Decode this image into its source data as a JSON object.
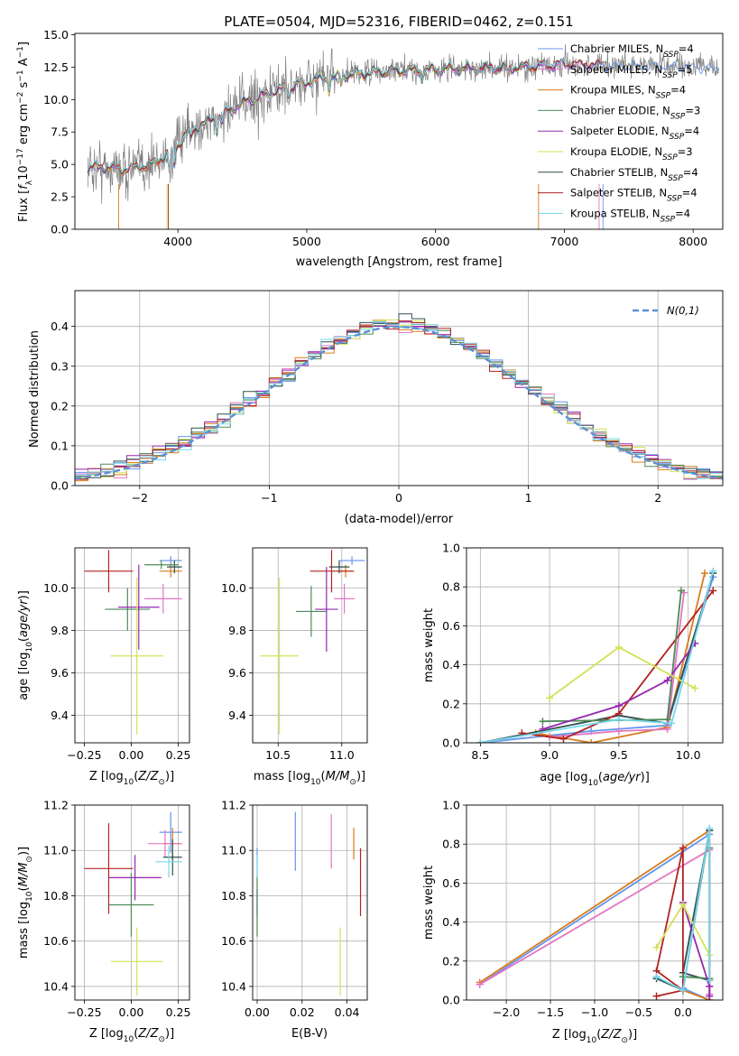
{
  "chart_data": [
    {
      "id": "spectrum",
      "type": "line",
      "title": "PLATE=0504, MJD=52316, FIBERID=0462, z=0.151",
      "xlabel": "wavelength [Angstrom, rest frame]",
      "ylabel": "Flux [f_λ10^-17 erg cm^-2 s^-1 A^-1]",
      "xlim": [
        3200,
        8230
      ],
      "ylim": [
        0,
        15.1
      ],
      "xticks": [
        4000,
        5000,
        6000,
        7000,
        8000
      ],
      "yticks": [
        0.0,
        2.5,
        5.0,
        7.5,
        10.0,
        12.5,
        15.0
      ],
      "grid": false,
      "legend_position": "upper right",
      "continuum": [
        [
          3300,
          4.7
        ],
        [
          3400,
          4.8
        ],
        [
          3600,
          4.6
        ],
        [
          3800,
          5.0
        ],
        [
          3950,
          6.0
        ],
        [
          4100,
          7.6
        ],
        [
          4300,
          8.6
        ],
        [
          4500,
          9.7
        ],
        [
          4800,
          10.8
        ],
        [
          5100,
          11.6
        ],
        [
          5400,
          12.0
        ],
        [
          5700,
          12.2
        ],
        [
          6000,
          12.3
        ],
        [
          6300,
          12.4
        ],
        [
          6700,
          12.5
        ],
        [
          7000,
          12.7
        ],
        [
          7500,
          12.7
        ],
        [
          8000,
          12.6
        ],
        [
          8200,
          12.5
        ]
      ],
      "series": [
        {
          "name": "Chabrier MILES, N_SSP=4",
          "color": "#6495ed"
        },
        {
          "name": "Salpeter MILES, N_SSP=5",
          "color": "#e377c2"
        },
        {
          "name": "Kroupa MILES, N_SSP=4",
          "color": "#d97c1c"
        },
        {
          "name": "Chabrier ELODIE, N_SSP=3",
          "color": "#4f8a59"
        },
        {
          "name": "Salpeter ELODIE, N_SSP=4",
          "color": "#9626b0"
        },
        {
          "name": "Kroupa ELODIE, N_SSP=3",
          "color": "#d4e157"
        },
        {
          "name": "Chabrier STELIB, N_SSP=4",
          "color": "#2f4f4f"
        },
        {
          "name": "Salpeter STELIB, N_SSP=4",
          "color": "#b22222"
        },
        {
          "name": "Kroupa STELIB, N_SSP=4",
          "color": "#76d7ea"
        }
      ]
    },
    {
      "id": "residuals",
      "type": "line",
      "xlabel": "(data-model)/error",
      "ylabel": "Normed distribution",
      "xlim": [
        -2.5,
        2.5
      ],
      "ylim": [
        0,
        0.49
      ],
      "xticks": [
        -2,
        -1,
        0,
        1,
        2
      ],
      "yticks": [
        0.0,
        0.1,
        0.2,
        0.3,
        0.4
      ],
      "grid": true,
      "legend_position": "upper right",
      "reference": {
        "name": "N(0,1)",
        "color": "#5b8fd6",
        "mean": 0,
        "sigma": 1
      },
      "bin_width": 0.1
    },
    {
      "id": "age_vs_Z",
      "type": "scatter",
      "xlabel": "Z [log10(Z/Z☉)]",
      "ylabel": "age  [log10(age/yr)]",
      "xlim": [
        -0.3,
        0.31
      ],
      "ylim": [
        9.27,
        10.19
      ],
      "xticks": [
        -0.25,
        0.0,
        0.25
      ],
      "yticks": [
        9.4,
        9.6,
        9.8,
        10.0
      ],
      "grid": true,
      "points": [
        {
          "x": 0.21,
          "xerr": 0.06,
          "y": 10.13,
          "yerr": 0.02,
          "color": "#6495ed"
        },
        {
          "x": 0.21,
          "xerr": 0.06,
          "y": 10.08,
          "yerr": 0.03,
          "color": "#d97c1c"
        },
        {
          "x": 0.23,
          "xerr": 0.04,
          "y": 10.1,
          "yerr": 0.03,
          "color": "#2f4f4f"
        },
        {
          "x": 0.16,
          "xerr": 0.09,
          "y": 10.11,
          "yerr": 0.02,
          "color": "#4f8a59"
        },
        {
          "x": 0.17,
          "xerr": 0.1,
          "y": 9.95,
          "yerr": 0.07,
          "color": "#e377c2"
        },
        {
          "x": -0.12,
          "xerr": 0.13,
          "y": 10.08,
          "yerr": 0.1,
          "color": "#b22222"
        },
        {
          "x": -0.02,
          "xerr": 0.12,
          "y": 9.9,
          "yerr": 0.1,
          "color": "#4f8a59"
        },
        {
          "x": 0.04,
          "xerr": 0.11,
          "y": 9.91,
          "yerr": 0.2,
          "color": "#9626b0"
        },
        {
          "x": 0.03,
          "xerr": 0.14,
          "y": 9.68,
          "yerr": 0.37,
          "color": "#d4e157"
        }
      ]
    },
    {
      "id": "age_vs_mass",
      "type": "scatter",
      "xlabel": "mass [log10(M/M☉)]",
      "ylabel": "",
      "xlim": [
        10.3,
        11.2
      ],
      "ylim": [
        9.27,
        10.19
      ],
      "xticks": [
        10.5,
        11.0
      ],
      "yticks": [
        9.4,
        9.6,
        9.8,
        10.0
      ],
      "grid": true,
      "points": [
        {
          "x": 11.08,
          "xerr": 0.1,
          "y": 10.13,
          "yerr": 0.02,
          "color": "#6495ed"
        },
        {
          "x": 11.03,
          "xerr": 0.07,
          "y": 10.08,
          "yerr": 0.03,
          "color": "#d97c1c"
        },
        {
          "x": 10.98,
          "xerr": 0.08,
          "y": 10.1,
          "yerr": 0.03,
          "color": "#2f4f4f"
        },
        {
          "x": 11.02,
          "xerr": 0.08,
          "y": 9.95,
          "yerr": 0.07,
          "color": "#e377c2"
        },
        {
          "x": 10.92,
          "xerr": 0.17,
          "y": 10.08,
          "yerr": 0.1,
          "color": "#b22222"
        },
        {
          "x": 10.76,
          "xerr": 0.12,
          "y": 9.89,
          "yerr": 0.12,
          "color": "#4f8a59"
        },
        {
          "x": 10.88,
          "xerr": 0.09,
          "y": 9.9,
          "yerr": 0.2,
          "color": "#9626b0"
        },
        {
          "x": 10.51,
          "xerr": 0.15,
          "y": 9.68,
          "yerr": 0.37,
          "color": "#d4e157"
        }
      ]
    },
    {
      "id": "massweight_vs_age",
      "type": "line",
      "xlabel": "age  [log10(age/yr)]",
      "ylabel": "mass weight",
      "xlim": [
        8.4,
        10.25
      ],
      "ylim": [
        0,
        1.0
      ],
      "xticks": [
        8.5,
        9.0,
        9.5,
        10.0
      ],
      "yticks": [
        0.0,
        0.2,
        0.4,
        0.6,
        0.8,
        1.0
      ],
      "grid": true,
      "series": [
        {
          "color": "#6495ed",
          "x": [
            8.5,
            9.3,
            9.85,
            10.18
          ],
          "y": [
            0.0,
            0.06,
            0.09,
            0.85
          ]
        },
        {
          "color": "#d97c1c",
          "x": [
            8.9,
            9.3,
            9.85,
            10.12
          ],
          "y": [
            0.05,
            0.0,
            0.08,
            0.87
          ]
        },
        {
          "color": "#2f4f4f",
          "x": [
            8.5,
            9.5,
            9.85,
            10.18
          ],
          "y": [
            0.0,
            0.14,
            0.1,
            0.87
          ]
        },
        {
          "color": "#e377c2",
          "x": [
            9.0,
            9.5,
            9.85,
            9.97
          ],
          "y": [
            0.03,
            0.06,
            0.07,
            0.77
          ]
        },
        {
          "color": "#b22222",
          "x": [
            8.8,
            9.1,
            9.5,
            10.18
          ],
          "y": [
            0.05,
            0.02,
            0.15,
            0.78
          ]
        },
        {
          "color": "#4f8a59",
          "x": [
            8.95,
            9.85,
            9.95
          ],
          "y": [
            0.11,
            0.12,
            0.78
          ]
        },
        {
          "color": "#9626b0",
          "x": [
            8.95,
            9.5,
            9.85,
            10.05
          ],
          "y": [
            0.07,
            0.19,
            0.32,
            0.51
          ]
        },
        {
          "color": "#d4e157",
          "x": [
            9.0,
            9.5,
            10.05
          ],
          "y": [
            0.23,
            0.49,
            0.28
          ]
        },
        {
          "color": "#76d7ea",
          "x": [
            8.5,
            9.5,
            9.88,
            10.18
          ],
          "y": [
            0.0,
            0.12,
            0.1,
            0.88
          ]
        }
      ]
    },
    {
      "id": "mass_vs_Z",
      "type": "scatter",
      "xlabel": "Z [log10(Z/Z☉)]",
      "ylabel": "mass [log10(M/M☉)]",
      "xlim": [
        -0.3,
        0.31
      ],
      "ylim": [
        10.34,
        11.2
      ],
      "xticks": [
        -0.25,
        0.0,
        0.25
      ],
      "yticks": [
        10.4,
        10.6,
        10.8,
        11.0,
        11.2
      ],
      "grid": true,
      "points": [
        {
          "x": 0.21,
          "xerr": 0.06,
          "y": 11.08,
          "yerr": 0.09,
          "color": "#6495ed"
        },
        {
          "x": 0.22,
          "xerr": 0.05,
          "y": 11.03,
          "yerr": 0.07,
          "color": "#d97c1c"
        },
        {
          "x": 0.18,
          "xerr": 0.09,
          "y": 11.03,
          "yerr": 0.06,
          "color": "#e377c2"
        },
        {
          "x": 0.22,
          "xerr": 0.05,
          "y": 10.97,
          "yerr": 0.08,
          "color": "#2f4f4f"
        },
        {
          "x": 0.2,
          "xerr": 0.07,
          "y": 10.95,
          "yerr": 0.07,
          "color": "#76d7ea"
        },
        {
          "x": -0.12,
          "xerr": 0.13,
          "y": 10.92,
          "yerr": 0.2,
          "color": "#b22222"
        },
        {
          "x": 0.02,
          "xerr": 0.14,
          "y": 10.88,
          "yerr": 0.1,
          "color": "#9626b0"
        },
        {
          "x": 0.0,
          "xerr": 0.12,
          "y": 10.76,
          "yerr": 0.14,
          "color": "#4f8a59"
        },
        {
          "x": 0.03,
          "xerr": 0.14,
          "y": 10.51,
          "yerr": 0.15,
          "color": "#d4e157"
        }
      ]
    },
    {
      "id": "mass_vs_EBV",
      "type": "scatter",
      "xlabel": "E(B-V)",
      "ylabel": "",
      "xlim": [
        -0.002,
        0.049
      ],
      "ylim": [
        10.34,
        11.2
      ],
      "xticks": [
        0.0,
        0.02,
        0.04
      ],
      "yticks": [
        10.4,
        10.6,
        10.8,
        11.0,
        11.2
      ],
      "grid": true,
      "points": [
        {
          "x": 0.0,
          "y": 10.96,
          "yerr": 0.05,
          "color": "#6495ed"
        },
        {
          "x": 0.0,
          "y": 10.77,
          "yerr": 0.06,
          "color": "#9626b0"
        },
        {
          "x": 0.0,
          "y": 10.76,
          "yerr": 0.14,
          "color": "#4f8a59"
        },
        {
          "x": 0.0,
          "y": 10.93,
          "yerr": 0.05,
          "color": "#76d7ea"
        },
        {
          "x": 0.017,
          "y": 11.04,
          "yerr": 0.13,
          "color": "#6495ed"
        },
        {
          "x": 0.033,
          "y": 11.04,
          "yerr": 0.12,
          "color": "#e377c2"
        },
        {
          "x": 0.037,
          "y": 10.51,
          "yerr": 0.15,
          "color": "#d4e157"
        },
        {
          "x": 0.043,
          "y": 11.03,
          "yerr": 0.07,
          "color": "#d97c1c"
        },
        {
          "x": 0.046,
          "y": 10.86,
          "yerr": 0.15,
          "color": "#b22222"
        }
      ]
    },
    {
      "id": "massweight_vs_Z",
      "type": "line",
      "xlabel": "Z [log10(Z/Z☉)]",
      "ylabel": "mass weight",
      "xlim": [
        -2.45,
        0.45
      ],
      "ylim": [
        0,
        1.0
      ],
      "xticks": [
        -2.0,
        -1.5,
        -1.0,
        -0.5,
        0.0
      ],
      "yticks": [
        0.0,
        0.2,
        0.4,
        0.6,
        0.8,
        1.0
      ],
      "grid": true,
      "series": [
        {
          "color": "#6495ed",
          "x": [
            -2.3,
            0.3,
            0.3,
            0.0
          ],
          "y": [
            0.08,
            0.85,
            0.0,
            0.06
          ]
        },
        {
          "color": "#d97c1c",
          "x": [
            -2.3,
            0.3,
            0.3,
            0.0
          ],
          "y": [
            0.09,
            0.87,
            0.0,
            0.05
          ]
        },
        {
          "color": "#e377c2",
          "x": [
            -2.3,
            0.3,
            0.3,
            0.3
          ],
          "y": [
            0.08,
            0.77,
            0.07,
            0.03
          ]
        },
        {
          "color": "#2f4f4f",
          "x": [
            -0.3,
            0.0,
            0.3,
            0.0,
            0.3
          ],
          "y": [
            0.11,
            0.05,
            0.87,
            0.14,
            0.1
          ]
        },
        {
          "color": "#b22222",
          "x": [
            -0.3,
            0.0,
            0.0,
            -0.3,
            0.0
          ],
          "y": [
            0.02,
            0.05,
            0.78,
            0.15,
            0.05
          ]
        },
        {
          "color": "#4f8a59",
          "x": [
            0.0,
            0.3,
            0.3
          ],
          "y": [
            0.12,
            0.11,
            0.78
          ]
        },
        {
          "color": "#9626b0",
          "x": [
            0.0,
            0.3,
            0.3
          ],
          "y": [
            0.5,
            0.07,
            0.02
          ]
        },
        {
          "color": "#d4e157",
          "x": [
            -0.3,
            0.0,
            0.3
          ],
          "y": [
            0.27,
            0.49,
            0.23
          ]
        },
        {
          "color": "#76d7ea",
          "x": [
            -0.3,
            0.0,
            0.3,
            0.3
          ],
          "y": [
            0.12,
            0.05,
            0.88,
            0.1
          ]
        }
      ]
    }
  ]
}
